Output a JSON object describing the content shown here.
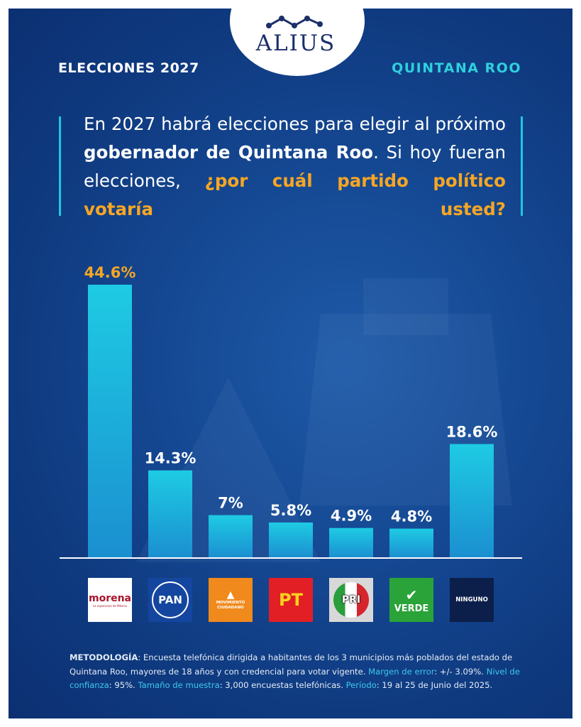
{
  "brand": {
    "name": "ALIUS"
  },
  "header": {
    "left": "ELECCIONES 2027",
    "right": "QUINTANA ROO"
  },
  "question": {
    "part1": "En 2027 habrá elecciones para elegir al próximo ",
    "bold": "gobernador de Quintana Roo",
    "part2": ". Si hoy fueran elecciones, ",
    "highlight": "¿por cuál partido político votaría usted?"
  },
  "chart_data": {
    "type": "bar",
    "categories": [
      "Morena",
      "PAN",
      "Movimiento Ciudadano",
      "PT",
      "PRI",
      "Verde",
      "Ninguno"
    ],
    "values": [
      44.6,
      14.3,
      7,
      5.8,
      4.9,
      4.8,
      18.6
    ],
    "value_labels": [
      "44.6%",
      "14.3%",
      "7%",
      "5.8%",
      "4.9%",
      "4.8%",
      "18.6%"
    ],
    "ylim": [
      0,
      48
    ],
    "grid": false,
    "highlight_color": "#f6a623",
    "bar_color": "#1ecbe4"
  },
  "parties": [
    {
      "name": "morena",
      "tagline": "La esperanza de México",
      "bg": "#ffffff",
      "color": "#a8152d"
    },
    {
      "name": "PAN",
      "bg": "#1446a0",
      "color": "#ffffff"
    },
    {
      "name": "MOVIMIENTO CIUDADANO",
      "bg": "#f08a1c",
      "color": "#ffffff"
    },
    {
      "name": "PT",
      "bg": "#e21f25",
      "color": "#f7d21c"
    },
    {
      "name": "PRI",
      "bg": "#d8d8d8",
      "color": "#ffffff"
    },
    {
      "name": "VERDE",
      "bg": "#2aa339",
      "color": "#ffffff"
    },
    {
      "name": "NINGUNO",
      "bg": "#0c1f4a",
      "color": "#ffffff"
    }
  ],
  "methodology": {
    "k1": "METODOLOGÍA",
    "t1": ": Encuesta telefónica dirigida a habitantes de los 3 municipios más poblados del estado de Quintana Roo, mayores de 18 años y con credencial para votar vigente. ",
    "k2": "Margen de error",
    "t2": ": +/- 3.09%. ",
    "k3": "Nivel de confianza",
    "t3": ": 95%. ",
    "k4": "Tamaño de muestra",
    "t4": ": 3,000 encuestas telefónicas. ",
    "k5": "Período",
    "t5": ": 19 al 25 de Junio del 2025."
  }
}
